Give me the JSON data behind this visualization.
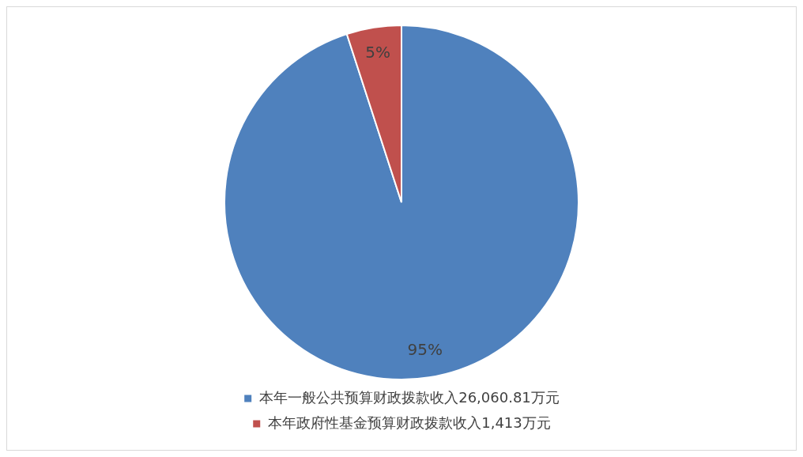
{
  "chart_data": {
    "type": "pie",
    "categories": [
      "本年一般公共预算财政拨款收入26,060.81万元",
      "本年政府性基金预算财政拨款收入1,413万元"
    ],
    "values": [
      95,
      5
    ],
    "colors": [
      "#4f81bd",
      "#c0504d"
    ],
    "value_labels": [
      "95%",
      "5%"
    ],
    "legend": "bottom"
  }
}
